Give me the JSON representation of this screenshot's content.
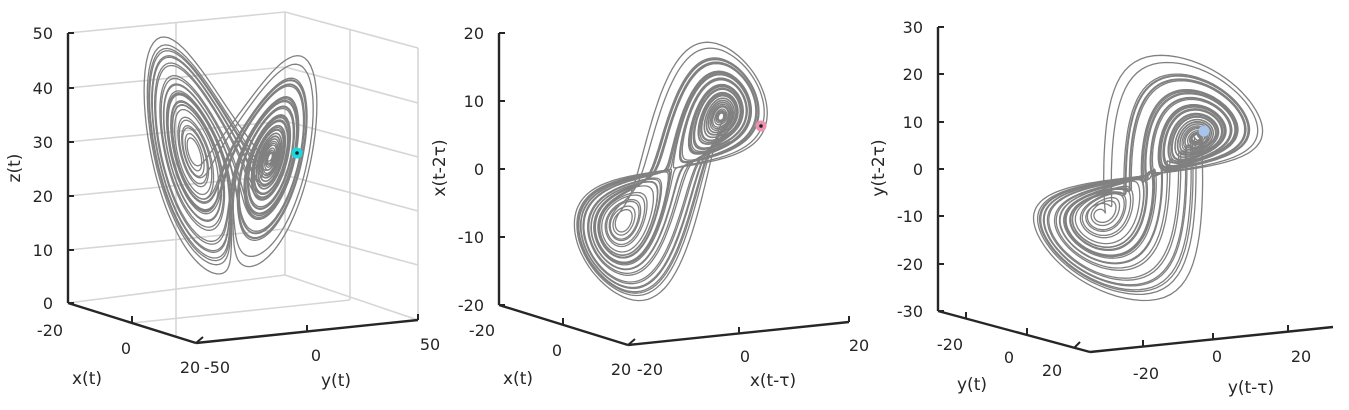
{
  "chart_data": [
    {
      "type": "line3d",
      "title": "",
      "xlabel": "x(t)",
      "ylabel": "y(t)",
      "zlabel": "z(t)",
      "xticks": [
        "-20",
        "0",
        "20"
      ],
      "yticks": [
        "-50",
        "0",
        "50"
      ],
      "zticks": [
        "0",
        "10",
        "20",
        "30",
        "40",
        "50"
      ],
      "xlim": [
        -20,
        20
      ],
      "ylim": [
        -50,
        50
      ],
      "zlim": [
        0,
        50
      ],
      "grid": true,
      "box": true,
      "series": [
        {
          "role": "trajectory",
          "color": "#808080"
        },
        {
          "role": "marker",
          "color": "#19d9e0"
        }
      ],
      "lobe_centers": [
        {
          "x": -8.5,
          "y": -8.5,
          "z": 27
        },
        {
          "x": 8.5,
          "y": 8.5,
          "z": 27
        }
      ],
      "marker": {
        "x": 9,
        "y": 10,
        "z": 28
      }
    },
    {
      "type": "line3d",
      "title": "",
      "xlabel": "x(t)",
      "ylabel": "x(t-τ)",
      "zlabel": "x(t-2τ)",
      "xticks": [
        "-20",
        "0",
        "20"
      ],
      "yticks": [
        "-20",
        "0",
        "20"
      ],
      "zticks": [
        "-20",
        "-10",
        "0",
        "10",
        "20"
      ],
      "xlim": [
        -20,
        20
      ],
      "ylim": [
        -20,
        20
      ],
      "zlim": [
        -20,
        20
      ],
      "grid": false,
      "box": false,
      "series": [
        {
          "role": "trajectory",
          "color": "#808080"
        },
        {
          "role": "marker",
          "color": "#ee90b0"
        }
      ],
      "lobe_centers": [
        {
          "x": -8.5,
          "y": -8.5,
          "z": -8.5
        },
        {
          "x": 8.5,
          "y": 8.5,
          "z": 8.5
        }
      ],
      "marker": {
        "x": 8,
        "y": 9,
        "z": 6
      }
    },
    {
      "type": "line3d",
      "title": "",
      "xlabel": "y(t)",
      "ylabel": "y(t-τ)",
      "zlabel": "y(t-2τ)",
      "xticks": [
        "-20",
        "0",
        "20"
      ],
      "yticks": [
        "-20",
        "0",
        "20"
      ],
      "zticks": [
        "-30",
        "-20",
        "-10",
        "0",
        "10",
        "20",
        "30"
      ],
      "xlim": [
        -25,
        25
      ],
      "ylim": [
        -25,
        25
      ],
      "zlim": [
        -30,
        30
      ],
      "grid": false,
      "box": false,
      "series": [
        {
          "role": "trajectory",
          "color": "#808080"
        },
        {
          "role": "marker",
          "color": "#a8c4ec"
        }
      ],
      "lobe_centers": [
        {
          "x": -8.5,
          "y": -8.5,
          "z": -8.5
        },
        {
          "x": 8.5,
          "y": 8.5,
          "z": 8.5
        }
      ],
      "marker": {
        "x": 8,
        "y": 9,
        "z": 8
      }
    }
  ]
}
